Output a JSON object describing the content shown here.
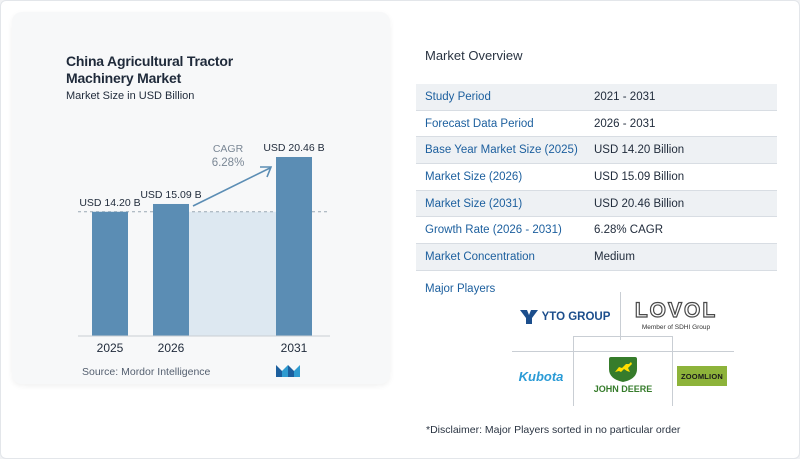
{
  "chart": {
    "title": "China Agricultural Tractor Machinery Market",
    "subtitle": "Market Size in USD Billion",
    "source": "Source:  Mordor Intelligence",
    "cagr_label": "CAGR",
    "cagr_value": "6.28%",
    "bar_labels": [
      "USD 14.20 B",
      "USD 15.09 B",
      "USD 20.46 B"
    ]
  },
  "chart_data": {
    "type": "bar",
    "categories": [
      "2025",
      "2026",
      "2031"
    ],
    "values": [
      14.2,
      15.09,
      20.46
    ],
    "title": "China Agricultural Tractor Machinery Market",
    "subtitle": "Market Size in USD Billion",
    "cagr": "6.28%"
  },
  "overview": {
    "title": "Market Overview",
    "rows": [
      {
        "key": "Study Period",
        "value": "2021 - 2031"
      },
      {
        "key": "Forecast Data Period",
        "value": "2026 - 2031"
      },
      {
        "key": "Base Year Market Size (2025)",
        "value": "USD 14.20 Billion"
      },
      {
        "key": "Market Size (2026)",
        "value": "USD 15.09 Billion"
      },
      {
        "key": "Market Size (2031)",
        "value": "USD 20.46 Billion"
      },
      {
        "key": "Growth Rate (2026 - 2031)",
        "value": "6.28% CAGR"
      },
      {
        "key": "Market Concentration",
        "value": "Medium"
      }
    ],
    "players_title": "Major Players",
    "players": [
      "YTO GROUP",
      "LOVOL",
      "Member of SDHI Group",
      "Kubota",
      "JOHN DEERE",
      "ZOOMLION"
    ],
    "disclaimer": "*Disclaimer: Major Players sorted in no particular order"
  },
  "colors": {
    "bar": "#5b8db4",
    "bar_light": "#dde8f1",
    "accent": "#1c5f9e",
    "deere_green": "#367c2b",
    "deere_yellow": "#ffde00",
    "zoomlion_bg": "#8db33a",
    "kubota": "#2a9bd6"
  }
}
